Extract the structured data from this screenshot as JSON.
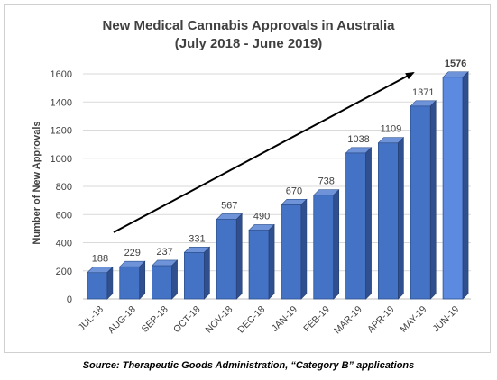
{
  "chart_data": {
    "type": "bar",
    "title": "New Medical Cannabis Approvals in Australia",
    "subtitle": "(July 2018 - June 2019)",
    "ylabel": "Number of New Approvals",
    "xlabel": "",
    "categories": [
      "JUL-18",
      "AUG-18",
      "SEP-18",
      "OCT-18",
      "NOV-18",
      "DEC-18",
      "JAN-19",
      "FEB-19",
      "MAR-19",
      "APR-19",
      "MAY-19",
      "JUN-19"
    ],
    "values": [
      188,
      229,
      237,
      331,
      567,
      490,
      670,
      738,
      1038,
      1109,
      1371,
      1576
    ],
    "data_labels": [
      "188",
      "229",
      "237",
      "331",
      "567",
      "490",
      "670",
      "738",
      "1038",
      "1109",
      "1371",
      "1576"
    ],
    "ylim": [
      0,
      1600
    ],
    "yticks": [
      "0",
      "200",
      "400",
      "600",
      "800",
      "1000",
      "1200",
      "1400",
      "1600"
    ],
    "grid": true,
    "legend": "none",
    "trend_arrow": true,
    "colors": {
      "bar_front": "#4472c4",
      "bar_top": "#6f93d8",
      "bar_side": "#2f4f8f",
      "last_bar_front": "#5b8ae0",
      "grid": "#d9d9d9",
      "text": "#404040"
    }
  },
  "source_note": "Source: Therapeutic Goods Administration, “Category B” applications"
}
